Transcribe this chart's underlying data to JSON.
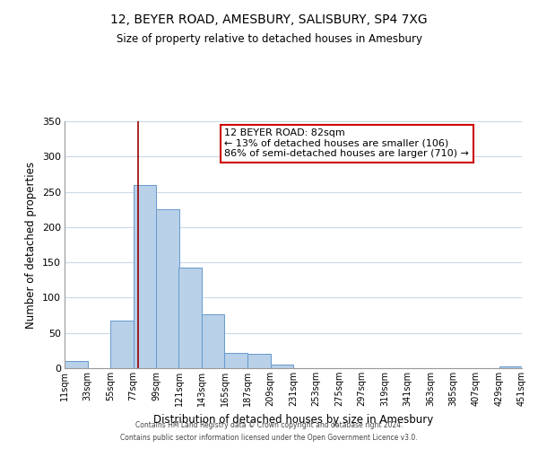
{
  "title": "12, BEYER ROAD, AMESBURY, SALISBURY, SP4 7XG",
  "subtitle": "Size of property relative to detached houses in Amesbury",
  "xlabel": "Distribution of detached houses by size in Amesbury",
  "ylabel": "Number of detached properties",
  "bin_edges": [
    11,
    33,
    55,
    77,
    99,
    121,
    143,
    165,
    187,
    209,
    231,
    253,
    275,
    297,
    319,
    341,
    363,
    385,
    407,
    429,
    451
  ],
  "bin_labels": [
    "11sqm",
    "33sqm",
    "55sqm",
    "77sqm",
    "99sqm",
    "121sqm",
    "143sqm",
    "165sqm",
    "187sqm",
    "209sqm",
    "231sqm",
    "253sqm",
    "275sqm",
    "297sqm",
    "319sqm",
    "341sqm",
    "363sqm",
    "385sqm",
    "407sqm",
    "429sqm",
    "451sqm"
  ],
  "counts": [
    10,
    0,
    68,
    260,
    225,
    143,
    77,
    22,
    20,
    5,
    0,
    0,
    0,
    0,
    0,
    0,
    0,
    0,
    0,
    2,
    0
  ],
  "bar_color": "#b8d0e8",
  "bar_edge_color": "#6699cc",
  "vline_x": 82,
  "vline_color": "#990000",
  "ylim": [
    0,
    350
  ],
  "yticks": [
    0,
    50,
    100,
    150,
    200,
    250,
    300,
    350
  ],
  "annotation_title": "12 BEYER ROAD: 82sqm",
  "annotation_line1": "← 13% of detached houses are smaller (106)",
  "annotation_line2": "86% of semi-detached houses are larger (710) →",
  "annotation_box_color": "#ffffff",
  "annotation_box_edge_color": "#cc0000",
  "footer_line1": "Contains HM Land Registry data © Crown copyright and database right 2024.",
  "footer_line2": "Contains public sector information licensed under the Open Government Licence v3.0.",
  "background_color": "#ffffff",
  "grid_color": "#ccd9e8"
}
